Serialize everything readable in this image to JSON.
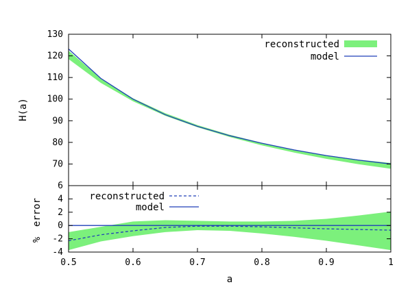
{
  "chart_data": [
    {
      "type": "line",
      "panel": "top",
      "xlabel": "",
      "ylabel": "H(a)",
      "xlim": [
        0.5,
        1.0
      ],
      "ylim": [
        60,
        130
      ],
      "yticks": [
        "130",
        "120",
        "110",
        "100",
        "90",
        "80",
        "70"
      ],
      "legend_position": "top-right",
      "band": {
        "name": "reconstructed",
        "color": "#7cf07c",
        "x": [
          0.5,
          0.55,
          0.6,
          0.65,
          0.7,
          0.75,
          0.8,
          0.85,
          0.9,
          0.95,
          1.0
        ],
        "lower": [
          118.5,
          107.5,
          99.0,
          92.3,
          87.0,
          82.5,
          78.6,
          75.3,
          72.4,
          69.9,
          67.8
        ],
        "upper": [
          122.4,
          109.6,
          100.4,
          93.5,
          88.0,
          83.5,
          79.8,
          76.6,
          74.0,
          72.0,
          70.5
        ]
      },
      "series": [
        {
          "name": "model",
          "color": "#1f3fb8",
          "style": "solid",
          "x": [
            0.5,
            0.55,
            0.6,
            0.65,
            0.7,
            0.75,
            0.8,
            0.85,
            0.9,
            0.95,
            1.0
          ],
          "y": [
            123.2,
            109.6,
            100.0,
            92.8,
            87.4,
            83.1,
            79.6,
            76.5,
            73.9,
            71.8,
            70.0
          ]
        }
      ]
    },
    {
      "type": "line",
      "panel": "bottom",
      "xlabel": "a",
      "ylabel": "% error",
      "ylabel_parts": [
        "%",
        "error"
      ],
      "xlim": [
        0.5,
        1.0
      ],
      "ylim": [
        -4,
        6
      ],
      "xticks": [
        "0.5",
        "0.6",
        "0.7",
        "0.8",
        "0.9",
        "1"
      ],
      "yticks": [
        "6",
        "4",
        "2",
        "0",
        "-2",
        "-4"
      ],
      "legend_position": "top-left",
      "band": {
        "color": "#7cf07c",
        "x": [
          0.5,
          0.55,
          0.6,
          0.65,
          0.7,
          0.75,
          0.8,
          0.85,
          0.9,
          0.95,
          1.0
        ],
        "lower": [
          -3.7,
          -2.4,
          -1.6,
          -1.0,
          -0.7,
          -0.8,
          -1.2,
          -1.7,
          -2.3,
          -3.0,
          -3.7
        ],
        "upper": [
          -1.0,
          -0.2,
          0.6,
          0.8,
          0.7,
          0.6,
          0.6,
          0.7,
          1.0,
          1.5,
          2.1
        ]
      },
      "series": [
        {
          "name": "reconstructed",
          "color": "#1f3fb8",
          "style": "dashed",
          "x": [
            0.5,
            0.55,
            0.6,
            0.65,
            0.7,
            0.75,
            0.8,
            0.85,
            0.9,
            0.95,
            1.0
          ],
          "y": [
            -2.3,
            -1.4,
            -0.8,
            -0.3,
            -0.1,
            -0.1,
            -0.2,
            -0.35,
            -0.5,
            -0.6,
            -0.7
          ]
        },
        {
          "name": "model",
          "color": "#1f3fb8",
          "style": "solid",
          "x": [
            0.5,
            1.0
          ],
          "y": [
            0,
            0
          ]
        }
      ]
    }
  ]
}
